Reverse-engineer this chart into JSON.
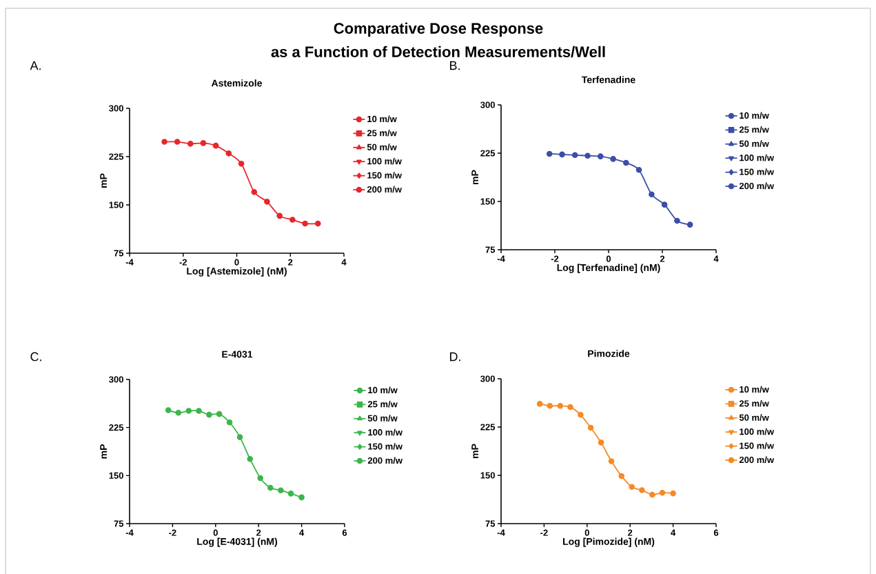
{
  "chart_data": [
    {
      "type": "line",
      "title": "Astemizole",
      "xlabel": "Log [Astemizole] (nM)",
      "ylabel": "mP",
      "annotations": [
        "Comparative Dose Response",
        "as a Function of Detection Measurements/Well",
        "A."
      ],
      "x": [
        -2.7,
        -2.22,
        -1.73,
        -1.25,
        -0.78,
        -0.3,
        0.17,
        0.65,
        1.13,
        1.6,
        2.08,
        2.55,
        3.03
      ],
      "xlim": [
        -4,
        4
      ],
      "xticks": [
        -4,
        -2,
        0,
        2,
        4
      ],
      "ylim": [
        75,
        300
      ],
      "yticks": [
        75,
        150,
        225,
        300
      ],
      "legend": "right",
      "series": [
        {
          "name": "10 m/w",
          "color": "#e8262b",
          "marker": "circle",
          "values": [
            null,
            null,
            null,
            null,
            null,
            null,
            null,
            null,
            null,
            null,
            null,
            null,
            null
          ]
        },
        {
          "name": "25 m/w",
          "color": "#e8262b",
          "marker": "square",
          "values": [
            null,
            null,
            null,
            null,
            null,
            null,
            null,
            null,
            null,
            null,
            null,
            null,
            null
          ]
        },
        {
          "name": "50 m/w",
          "color": "#e8262b",
          "marker": "triangle",
          "values": [
            null,
            null,
            null,
            null,
            null,
            null,
            null,
            null,
            null,
            null,
            null,
            null,
            null
          ]
        },
        {
          "name": "100 m/w",
          "color": "#e8262b",
          "marker": "triangle-down",
          "values": [
            null,
            null,
            null,
            null,
            null,
            null,
            null,
            null,
            null,
            null,
            null,
            null,
            null
          ]
        },
        {
          "name": "150 m/w",
          "color": "#e8262b",
          "marker": "diamond",
          "values": [
            null,
            null,
            null,
            null,
            null,
            null,
            null,
            null,
            null,
            null,
            null,
            null,
            null
          ]
        },
        {
          "name": "200 m/w",
          "color": "#e8262b",
          "marker": "circle",
          "values": [
            248,
            248,
            245,
            246,
            242,
            230,
            214,
            170,
            155,
            133,
            127,
            121,
            121
          ]
        }
      ]
    },
    {
      "type": "line",
      "title": "Terfenadine",
      "xlabel": "Log [Terfenadine] (nM)",
      "ylabel": "mP",
      "annotations": [
        "B."
      ],
      "x": [
        -2.2,
        -1.73,
        -1.25,
        -0.78,
        -0.3,
        0.17,
        0.65,
        1.13,
        1.6,
        2.08,
        2.55,
        3.03
      ],
      "xlim": [
        -4,
        4
      ],
      "xticks": [
        -4,
        -2,
        0,
        2,
        4
      ],
      "ylim": [
        75,
        300
      ],
      "yticks": [
        75,
        150,
        225,
        300
      ],
      "legend": "right",
      "series": [
        {
          "name": "10 m/w",
          "color": "#3a4fa8",
          "marker": "circle",
          "values": [
            null,
            null,
            null,
            null,
            null,
            null,
            null,
            null,
            null,
            null,
            null,
            null
          ]
        },
        {
          "name": "25 m/w",
          "color": "#3a4fa8",
          "marker": "square",
          "values": [
            null,
            null,
            null,
            null,
            null,
            null,
            null,
            null,
            null,
            null,
            null,
            null
          ]
        },
        {
          "name": "50 m/w",
          "color": "#3a4fa8",
          "marker": "triangle",
          "values": [
            null,
            null,
            null,
            null,
            null,
            null,
            null,
            null,
            null,
            null,
            null,
            null
          ]
        },
        {
          "name": "100 m/w",
          "color": "#3a4fa8",
          "marker": "triangle-down",
          "values": [
            null,
            null,
            null,
            null,
            null,
            null,
            null,
            null,
            null,
            null,
            null,
            null
          ]
        },
        {
          "name": "150 m/w",
          "color": "#3a4fa8",
          "marker": "diamond",
          "values": [
            null,
            null,
            null,
            null,
            null,
            null,
            null,
            null,
            null,
            null,
            null,
            null
          ]
        },
        {
          "name": "200 m/w",
          "color": "#3a4fa8",
          "marker": "circle",
          "values": [
            224,
            223,
            222,
            221,
            220,
            216,
            210,
            199,
            161,
            145,
            120,
            114
          ]
        }
      ]
    },
    {
      "type": "line",
      "title": "E-4031",
      "xlabel": "Log [E-4031] (nM)",
      "ylabel": "mP",
      "annotations": [
        "C."
      ],
      "x": [
        -2.2,
        -1.73,
        -1.25,
        -0.78,
        -0.3,
        0.17,
        0.65,
        1.13,
        1.6,
        2.08,
        2.55,
        3.03,
        3.5,
        4.0
      ],
      "xlim": [
        -4,
        6
      ],
      "xticks": [
        -4,
        -2,
        0,
        2,
        4,
        6
      ],
      "ylim": [
        75,
        300
      ],
      "yticks": [
        75,
        150,
        225,
        300
      ],
      "legend": "right",
      "series": [
        {
          "name": "10 m/w",
          "color": "#3cb54a",
          "marker": "circle",
          "values": [
            null,
            null,
            null,
            null,
            null,
            null,
            null,
            null,
            null,
            null,
            null,
            null,
            null,
            null
          ]
        },
        {
          "name": "25 m/w",
          "color": "#3cb54a",
          "marker": "square",
          "values": [
            null,
            null,
            null,
            null,
            null,
            null,
            null,
            null,
            null,
            null,
            null,
            null,
            null,
            null
          ]
        },
        {
          "name": "50 m/w",
          "color": "#3cb54a",
          "marker": "triangle",
          "values": [
            null,
            null,
            null,
            null,
            null,
            null,
            null,
            null,
            null,
            null,
            null,
            null,
            null,
            null
          ]
        },
        {
          "name": "100 m/w",
          "color": "#3cb54a",
          "marker": "triangle-down",
          "values": [
            null,
            null,
            null,
            null,
            null,
            null,
            null,
            null,
            null,
            null,
            null,
            null,
            null,
            null
          ]
        },
        {
          "name": "150 m/w",
          "color": "#3cb54a",
          "marker": "diamond",
          "values": [
            null,
            null,
            null,
            null,
            null,
            null,
            null,
            null,
            null,
            null,
            null,
            null,
            null,
            null
          ]
        },
        {
          "name": "200 m/w",
          "color": "#3cb54a",
          "marker": "circle",
          "values": [
            252,
            248,
            251,
            251,
            245,
            246,
            233,
            210,
            176,
            146,
            131,
            127,
            122,
            116
          ]
        }
      ]
    },
    {
      "type": "line",
      "title": "Pimozide",
      "xlabel": "Log [Pimozide] (nM)",
      "ylabel": "mP",
      "annotations": [
        "D."
      ],
      "x": [
        -2.2,
        -1.73,
        -1.25,
        -0.78,
        -0.3,
        0.17,
        0.65,
        1.13,
        1.6,
        2.08,
        2.55,
        3.03,
        3.5,
        4.0
      ],
      "xlim": [
        -4,
        6
      ],
      "xticks": [
        -4,
        -2,
        0,
        2,
        4,
        6
      ],
      "ylim": [
        75,
        300
      ],
      "yticks": [
        75,
        150,
        225,
        300
      ],
      "legend": "right",
      "series": [
        {
          "name": "10 m/w",
          "color": "#f58a26",
          "marker": "circle",
          "values": [
            null,
            null,
            null,
            null,
            null,
            null,
            null,
            null,
            null,
            null,
            null,
            null,
            null,
            null
          ]
        },
        {
          "name": "25 m/w",
          "color": "#f58a26",
          "marker": "square",
          "values": [
            null,
            null,
            null,
            null,
            null,
            null,
            null,
            null,
            null,
            null,
            null,
            null,
            null,
            null
          ]
        },
        {
          "name": "50 m/w",
          "color": "#f58a26",
          "marker": "triangle",
          "values": [
            null,
            null,
            null,
            null,
            null,
            null,
            null,
            null,
            null,
            null,
            null,
            null,
            null,
            null
          ]
        },
        {
          "name": "100 m/w",
          "color": "#f58a26",
          "marker": "triangle-down",
          "values": [
            null,
            null,
            null,
            null,
            null,
            null,
            null,
            null,
            null,
            null,
            null,
            null,
            null,
            null
          ]
        },
        {
          "name": "150 m/w",
          "color": "#f58a26",
          "marker": "diamond",
          "values": [
            null,
            null,
            null,
            null,
            null,
            null,
            null,
            null,
            null,
            null,
            null,
            null,
            null,
            null
          ]
        },
        {
          "name": "200 m/w",
          "color": "#f58a26",
          "marker": "circle",
          "values": [
            261,
            258,
            258,
            256,
            244,
            224,
            201,
            172,
            149,
            132,
            127,
            120,
            123,
            122
          ]
        }
      ]
    }
  ]
}
